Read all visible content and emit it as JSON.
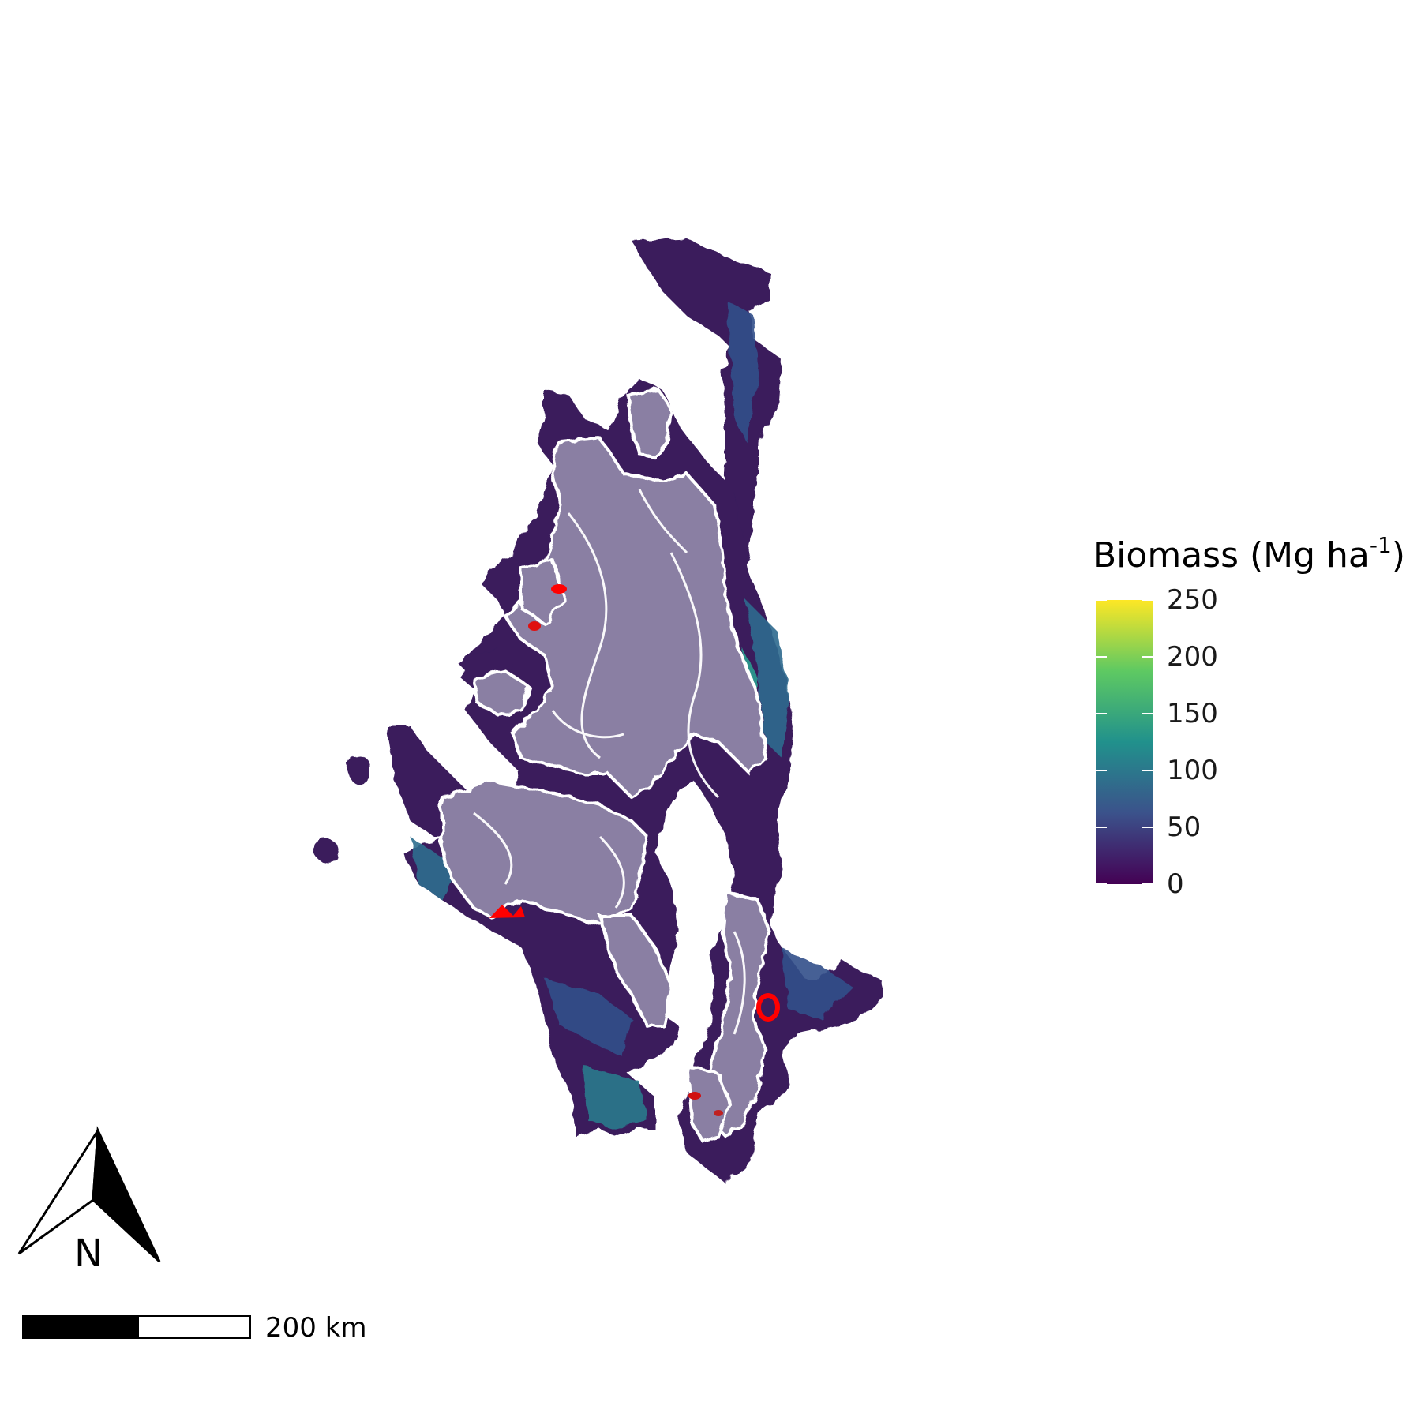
{
  "legend": {
    "title_main": "Biomass (Mg ha",
    "title_sup": "-1",
    "title_end": ")",
    "ticks": [
      "250",
      "200",
      "150",
      "100",
      "50",
      "0"
    ],
    "tick_values": [
      250,
      200,
      150,
      100,
      50,
      0
    ],
    "range": [
      0,
      250
    ],
    "colormap": [
      "#440154",
      "#3b528b",
      "#21918c",
      "#5ec962",
      "#fde725"
    ]
  },
  "north_arrow": {
    "label": "N"
  },
  "scale_bar": {
    "label": "200 km"
  },
  "colors": {
    "background": "#ffffff",
    "low_biomass": "#3a1d5c",
    "mid_biomass": "#33628d",
    "high_biomass": "#2a9d8f",
    "protected_overlay": "#8a7fa3",
    "boundary": "#ffffff",
    "highlight": "#ff0000"
  }
}
